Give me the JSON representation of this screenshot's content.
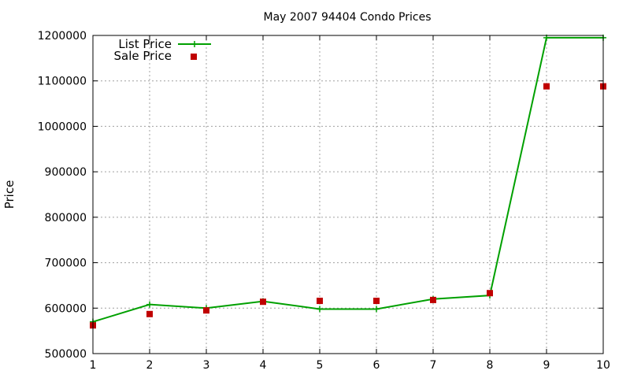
{
  "chart_data": {
    "type": "line",
    "title": "May 2007 94404 Condo Prices",
    "xlabel": "",
    "ylabel": "Price",
    "x": [
      1,
      2,
      3,
      4,
      5,
      6,
      7,
      8,
      9,
      10
    ],
    "xlim": [
      1,
      10
    ],
    "ylim": [
      500000,
      1200000
    ],
    "x_ticks": [
      "1",
      "2",
      "3",
      "4",
      "5",
      "6",
      "7",
      "8",
      "9",
      "10"
    ],
    "y_ticks": [
      500000,
      600000,
      700000,
      800000,
      900000,
      1000000,
      1100000,
      1200000
    ],
    "y_tick_labels": [
      "500000",
      "600000",
      "700000",
      "800000",
      "900000",
      "1000000",
      "1100000",
      "1200000"
    ],
    "grid": true,
    "legend_position": "top-left",
    "series": [
      {
        "name": "List Price",
        "style": "line-with-plus-markers",
        "color": "#00a000",
        "values": [
          570000,
          608000,
          600000,
          615000,
          598000,
          598000,
          620000,
          628000,
          1195000,
          1195000
        ]
      },
      {
        "name": "Sale Price",
        "style": "square-markers",
        "color": "#c00000",
        "values": [
          562000,
          587000,
          595000,
          614000,
          616000,
          616000,
          618000,
          633000,
          1088000,
          1088000
        ]
      }
    ]
  }
}
